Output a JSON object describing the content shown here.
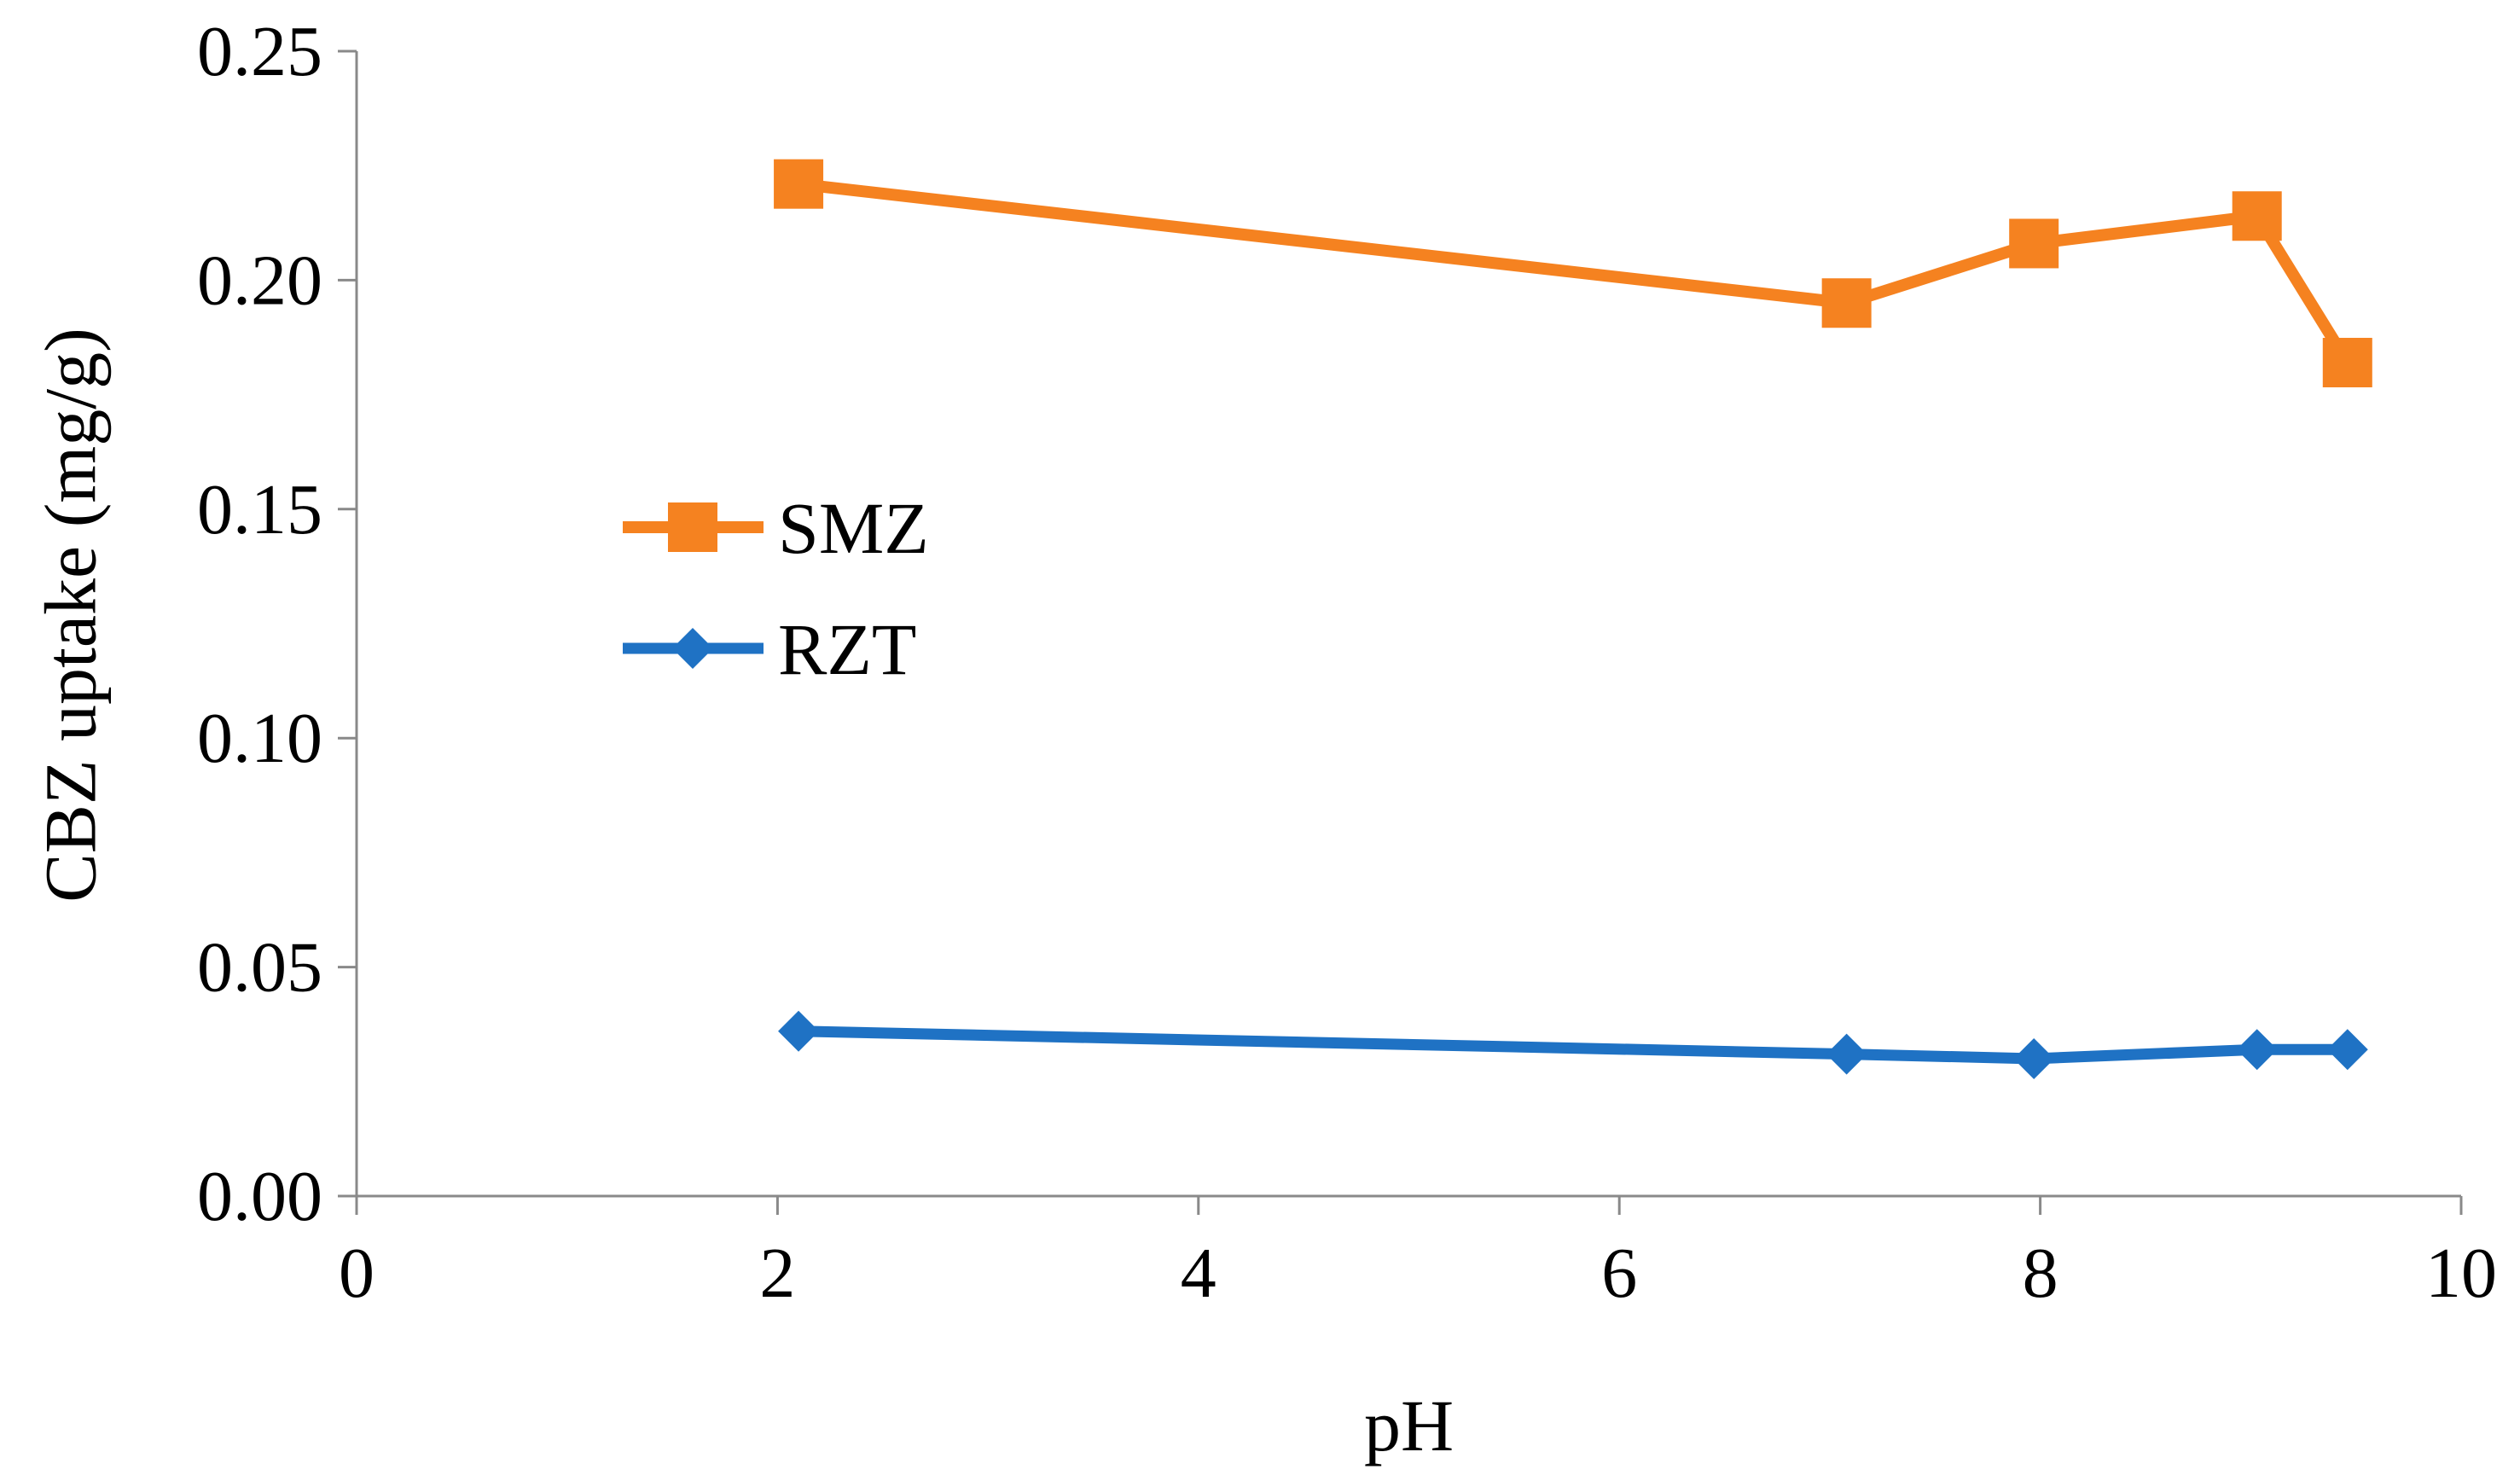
{
  "chart_data": {
    "type": "line",
    "title": "",
    "xlabel": "pH",
    "ylabel": "CBZ uptake (mg/g)",
    "xlim": [
      0,
      10
    ],
    "ylim": [
      0,
      0.25
    ],
    "x_ticks": [
      0,
      2,
      4,
      6,
      8,
      10
    ],
    "x_tick_labels": [
      "0",
      "2",
      "4",
      "6",
      "8",
      "10"
    ],
    "y_ticks": [
      0,
      0.05,
      0.1,
      0.15,
      0.2,
      0.25
    ],
    "y_tick_labels": [
      "0.00",
      "0.05",
      "0.10",
      "0.15",
      "0.20",
      "0.25"
    ],
    "grid": false,
    "legend_position": "center-left",
    "series": [
      {
        "name": "SMZ",
        "marker": "square",
        "color": "#F58220",
        "x": [
          2.1,
          7.08,
          7.97,
          9.03,
          9.46
        ],
        "values": [
          0.221,
          0.195,
          0.208,
          0.214,
          0.182
        ]
      },
      {
        "name": "RZT",
        "marker": "diamond",
        "color": "#1F72C4",
        "x": [
          2.1,
          7.08,
          7.97,
          9.03,
          9.46
        ],
        "values": [
          0.036,
          0.031,
          0.03,
          0.032,
          0.032
        ]
      }
    ]
  }
}
